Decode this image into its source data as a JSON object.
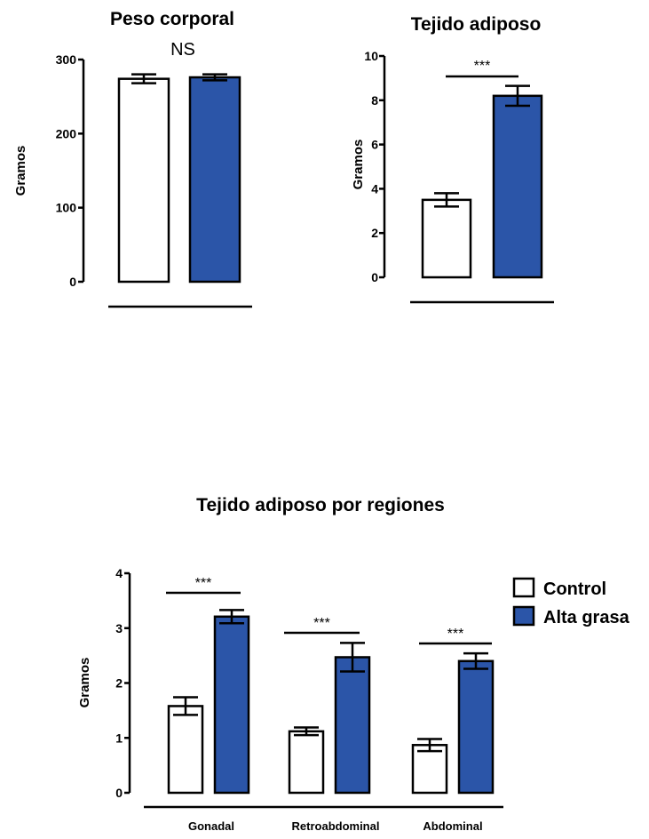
{
  "colors": {
    "control": "#ffffff",
    "high_fat": "#2b55a8",
    "stroke": "#000000"
  },
  "chart_data": [
    {
      "type": "bar",
      "title": "Peso corporal",
      "ylabel": "Gramos",
      "ylim": [
        0,
        300
      ],
      "yticks": [
        0,
        100,
        200,
        300
      ],
      "series": [
        {
          "name": "Control",
          "values": [
            274
          ],
          "errors": [
            6
          ]
        },
        {
          "name": "Alta grasa",
          "values": [
            276
          ],
          "errors": [
            4
          ]
        }
      ],
      "significance": [
        "NS"
      ]
    },
    {
      "type": "bar",
      "title": "Tejido adiposo",
      "ylabel": "Gramos",
      "ylim": [
        0,
        10
      ],
      "yticks": [
        0,
        2,
        4,
        6,
        8,
        10
      ],
      "series": [
        {
          "name": "Control",
          "values": [
            3.5
          ],
          "errors": [
            0.3
          ]
        },
        {
          "name": "Alta grasa",
          "values": [
            8.2
          ],
          "errors": [
            0.45
          ]
        }
      ],
      "significance": [
        "***"
      ]
    },
    {
      "type": "bar",
      "title": "Tejido adiposo por regiones",
      "ylabel": "Gramos",
      "ylim": [
        0,
        4
      ],
      "yticks": [
        0,
        1,
        2,
        3,
        4
      ],
      "categories": [
        "Gonadal",
        "Retroabdominal",
        "Abdominal"
      ],
      "series": [
        {
          "name": "Control",
          "values": [
            1.58,
            1.12,
            0.87
          ],
          "errors": [
            0.16,
            0.07,
            0.11
          ]
        },
        {
          "name": "Alta grasa",
          "values": [
            3.21,
            2.47,
            2.4
          ],
          "errors": [
            0.12,
            0.26,
            0.14
          ]
        }
      ],
      "significance": [
        "***",
        "***",
        "***"
      ],
      "legend": {
        "position": "right",
        "entries": [
          "Control",
          "Alta grasa"
        ]
      }
    }
  ]
}
